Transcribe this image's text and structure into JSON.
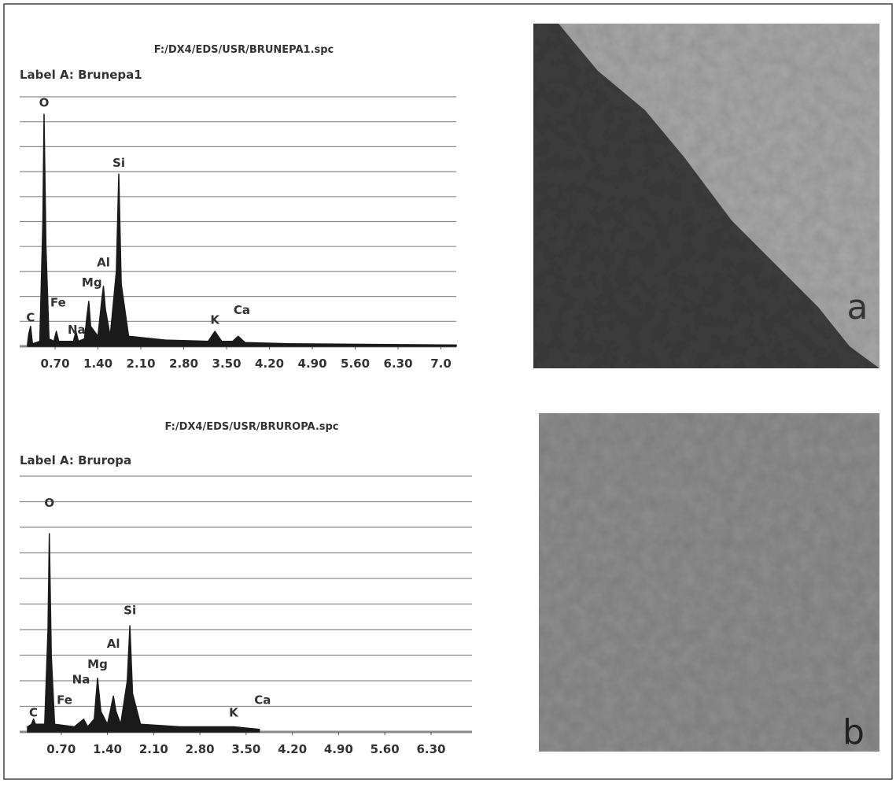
{
  "chart_data": [
    {
      "type": "area",
      "title": "F:/DX4/EDS/USR/BRUNEPA1.spc",
      "subtitle": "Label A: Brunepa1",
      "color": "#1a1a1a",
      "x": [
        0.25,
        0.27,
        0.3,
        0.33,
        0.45,
        0.5,
        0.52,
        0.55,
        0.6,
        0.68,
        0.72,
        0.76,
        0.9,
        1.0,
        1.04,
        1.08,
        1.18,
        1.22,
        1.25,
        1.28,
        1.4,
        1.46,
        1.49,
        1.52,
        1.6,
        1.7,
        1.74,
        1.78,
        1.9,
        2.5,
        3.2,
        3.31,
        3.42,
        3.6,
        3.69,
        3.8,
        4.5,
        7.25
      ],
      "values": [
        0.1,
        0.5,
        0.8,
        0.1,
        0.2,
        5,
        9.3,
        4,
        0.3,
        0.2,
        0.6,
        0.2,
        0.2,
        0.2,
        0.6,
        0.2,
        0.3,
        1.2,
        1.8,
        0.8,
        0.4,
        1.8,
        2.4,
        1.5,
        0.4,
        3,
        6.9,
        2.5,
        0.4,
        0.25,
        0.2,
        0.6,
        0.2,
        0.2,
        0.4,
        0.15,
        0.1,
        0.05
      ],
      "xlim": [
        0.25,
        7.25
      ],
      "xticks": [
        {
          "value": 0.7,
          "label": "0.70"
        },
        {
          "value": 1.4,
          "label": "1.40"
        },
        {
          "value": 2.1,
          "label": "2.10"
        },
        {
          "value": 2.8,
          "label": "2.80"
        },
        {
          "value": 3.5,
          "label": "3.50"
        },
        {
          "value": 4.2,
          "label": "4.20"
        },
        {
          "value": 4.9,
          "label": "4.90"
        },
        {
          "value": 5.6,
          "label": "5.60"
        },
        {
          "value": 6.3,
          "label": "6.30"
        },
        {
          "value": 7,
          "label": "7.0"
        }
      ],
      "ylim": [
        0,
        10
      ],
      "yticks": [
        0,
        1,
        2,
        3,
        4,
        5,
        6,
        7,
        8,
        9,
        10
      ],
      "grid": true,
      "annotations": [
        {
          "text": "O",
          "x": 0.52,
          "y": 9.6
        },
        {
          "text": "Si",
          "x": 1.74,
          "y": 7.2
        },
        {
          "text": "Al",
          "x": 1.49,
          "y": 3.2
        },
        {
          "text": "Mg",
          "x": 1.3,
          "y": 2.4
        },
        {
          "text": "Fe",
          "x": 0.75,
          "y": 1.6
        },
        {
          "text": "Na",
          "x": 1.05,
          "y": 0.5
        },
        {
          "text": "C",
          "x": 0.3,
          "y": 1.0
        },
        {
          "text": "K",
          "x": 3.31,
          "y": 0.9
        },
        {
          "text": "Ca",
          "x": 3.75,
          "y": 1.3
        }
      ]
    },
    {
      "type": "area",
      "title": "F:/DX4/EDS/USR/BRUROPA.spc",
      "subtitle": "Label A: Bruropa",
      "color": "#1a1a1a",
      "x": [
        0.19,
        0.25,
        0.28,
        0.31,
        0.45,
        0.5,
        0.52,
        0.55,
        0.6,
        0.9,
        1.04,
        1.1,
        1.2,
        1.25,
        1.3,
        1.4,
        1.45,
        1.49,
        1.53,
        1.6,
        1.7,
        1.74,
        1.78,
        1.9,
        2.5,
        3.31,
        3.7
      ],
      "values": [
        0.2,
        0.3,
        0.5,
        0.3,
        0.3,
        4,
        7.75,
        3,
        0.3,
        0.2,
        0.5,
        0.2,
        0.5,
        2.1,
        0.8,
        0.3,
        0.9,
        1.4,
        0.8,
        0.3,
        2,
        4.15,
        1.5,
        0.3,
        0.2,
        0.2,
        0.1
      ],
      "xlim": [
        0.19,
        6.92
      ],
      "xticks": [
        {
          "value": 0.7,
          "label": "0.70"
        },
        {
          "value": 1.4,
          "label": "1.40"
        },
        {
          "value": 2.1,
          "label": "2.10"
        },
        {
          "value": 2.8,
          "label": "2.80"
        },
        {
          "value": 3.5,
          "label": "3.50"
        },
        {
          "value": 4.2,
          "label": "4.20"
        },
        {
          "value": 4.9,
          "label": "4.90"
        },
        {
          "value": 5.6,
          "label": "5.60"
        },
        {
          "value": 6.3,
          "label": "6.30"
        }
      ],
      "ylim": [
        0,
        10
      ],
      "yticks": [
        0,
        1,
        2,
        3,
        4,
        5,
        6,
        7,
        8,
        9,
        10
      ],
      "grid": true,
      "annotations": [
        {
          "text": "O",
          "x": 0.52,
          "y": 8.8
        },
        {
          "text": "Si",
          "x": 1.74,
          "y": 4.6
        },
        {
          "text": "Al",
          "x": 1.49,
          "y": 3.3
        },
        {
          "text": "Mg",
          "x": 1.25,
          "y": 2.5
        },
        {
          "text": "Na",
          "x": 1.0,
          "y": 1.9
        },
        {
          "text": "Fe",
          "x": 0.75,
          "y": 1.1
        },
        {
          "text": "C",
          "x": 0.28,
          "y": 0.6
        },
        {
          "text": "K",
          "x": 3.31,
          "y": 0.6
        },
        {
          "text": "Ca",
          "x": 3.75,
          "y": 1.1
        }
      ]
    }
  ],
  "panel_labels": [
    "a",
    "b"
  ]
}
